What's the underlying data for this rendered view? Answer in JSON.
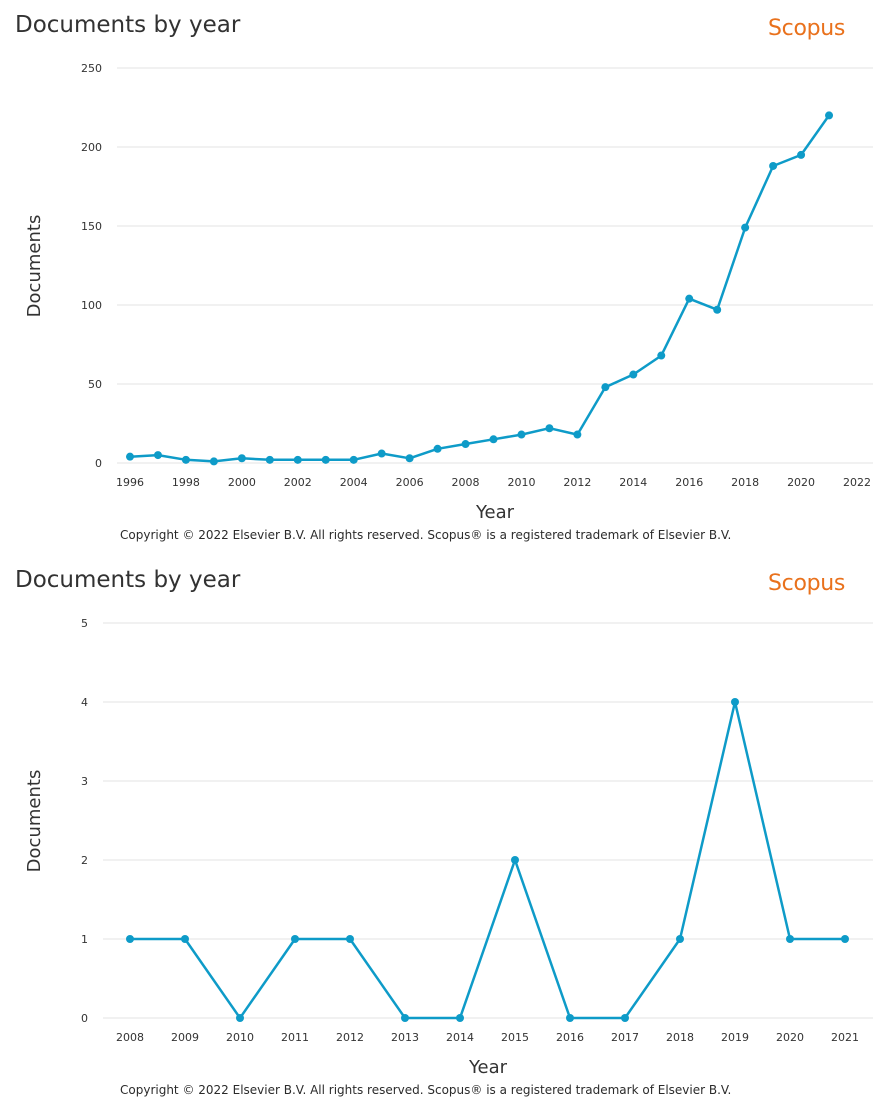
{
  "colors": {
    "series": "#0e9bc8",
    "brand": "#e9711c",
    "grid": "#e3e3e3",
    "text": "#333333"
  },
  "charts": [
    {
      "title": "Documents by year",
      "brand": "Scopus",
      "copyright": "Copyright © 2022 Elsevier B.V. All rights reserved. Scopus® is a registered trademark of Elsevier B.V."
    },
    {
      "title": "Documents by year",
      "brand": "Scopus",
      "copyright": "Copyright © 2022 Elsevier B.V. All rights reserved. Scopus® is a registered trademark of Elsevier B.V."
    }
  ],
  "chart_data": [
    {
      "type": "line",
      "xlabel": "Year",
      "ylabel": "Documents",
      "x": [
        1996,
        1997,
        1998,
        1999,
        2000,
        2001,
        2002,
        2003,
        2004,
        2005,
        2006,
        2007,
        2008,
        2009,
        2010,
        2011,
        2012,
        2013,
        2014,
        2015,
        2016,
        2017,
        2018,
        2019,
        2020,
        2021
      ],
      "values": [
        4,
        5,
        2,
        1,
        3,
        2,
        2,
        2,
        2,
        6,
        3,
        9,
        12,
        15,
        18,
        22,
        18,
        48,
        56,
        68,
        104,
        97,
        149,
        188,
        195,
        220
      ],
      "xlim": [
        1996,
        2022
      ],
      "ylim": [
        0,
        250
      ],
      "x_ticks": [
        "1996",
        "1998",
        "2000",
        "2002",
        "2004",
        "2006",
        "2008",
        "2010",
        "2012",
        "2014",
        "2016",
        "2018",
        "2020",
        "2022"
      ],
      "y_ticks": [
        "0",
        "50",
        "100",
        "150",
        "200",
        "250"
      ],
      "grid": "horizontal",
      "legend": "none"
    },
    {
      "type": "line",
      "xlabel": "Year",
      "ylabel": "Documents",
      "x": [
        2008,
        2009,
        2010,
        2011,
        2012,
        2013,
        2014,
        2015,
        2016,
        2017,
        2018,
        2019,
        2020,
        2021
      ],
      "values": [
        1,
        1,
        0,
        1,
        1,
        0,
        0,
        2,
        0,
        0,
        1,
        4,
        1,
        1
      ],
      "ylim": [
        0,
        5
      ],
      "x_ticks": [
        "2008",
        "2009",
        "2010",
        "2011",
        "2012",
        "2013",
        "2014",
        "2015",
        "2016",
        "2017",
        "2018",
        "2019",
        "2020",
        "2021"
      ],
      "y_ticks": [
        "0",
        "1",
        "2",
        "3",
        "4",
        "5"
      ],
      "grid": "horizontal",
      "legend": "none"
    }
  ]
}
